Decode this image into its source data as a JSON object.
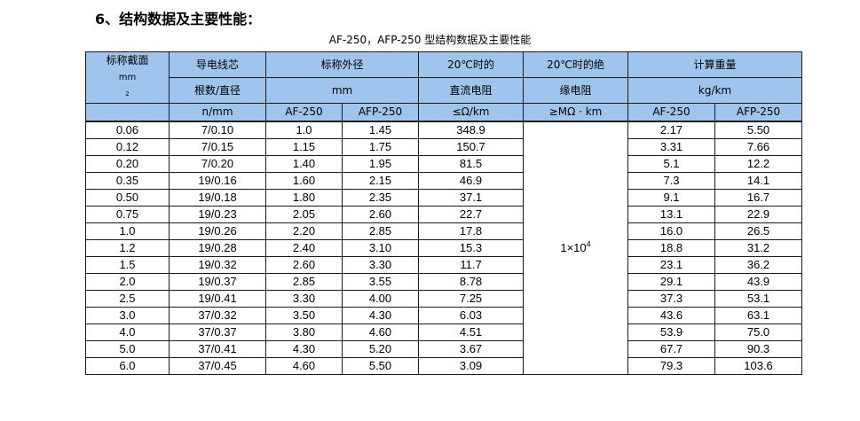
{
  "heading": "6、结构数据及主要性能：",
  "caption": "AF-250，AFP-250 型结构数据及主要性能",
  "headers": {
    "cross_section": "标称截面",
    "cross_section_unit": "mm",
    "cross_section_sup": "2",
    "conductor_line1": "导电线芯",
    "conductor_line2": "根数/直径",
    "conductor_unit": "n/mm",
    "od_title": "标称外径",
    "od_unit": "mm",
    "od_af": "AF-250",
    "od_afp": "AFP-250",
    "dcr_line1": "20℃时的",
    "dcr_line2": "直流电阻",
    "dcr_unit": "≤Ω/km",
    "ins_line1": "20℃时的绝",
    "ins_line2": "缘电阻",
    "ins_unit": "≥MΩ · km",
    "wt_title": "计算重量",
    "wt_unit": "kg/km",
    "wt_af": "AF-250",
    "wt_afp": "AFP-250"
  },
  "insulation_value": "1×10",
  "insulation_exp": "4",
  "rows": [
    [
      "0.06",
      "7/0.10",
      "1.0",
      "1.45",
      "348.9",
      "2.17",
      "5.50"
    ],
    [
      "0.12",
      "7/0.15",
      "1.15",
      "1.75",
      "150.7",
      "3.31",
      "7.66"
    ],
    [
      "0.20",
      "7/0.20",
      "1.40",
      "1.95",
      "81.5",
      "5.1",
      "12.2"
    ],
    [
      "0.35",
      "19/0.16",
      "1.60",
      "2.15",
      "46.9",
      "7.3",
      "14.1"
    ],
    [
      "0.50",
      "19/0.18",
      "1.80",
      "2.35",
      "37.1",
      "9.1",
      "16.7"
    ],
    [
      "0.75",
      "19/0.23",
      "2.05",
      "2.60",
      "22.7",
      "13.1",
      "22.9"
    ],
    [
      "1.0",
      "19/0.26",
      "2.20",
      "2.85",
      "17.8",
      "16.0",
      "26.5"
    ],
    [
      "1.2",
      "19/0.28",
      "2.40",
      "3.10",
      "15.3",
      "18.8",
      "31.2"
    ],
    [
      "1.5",
      "19/0.32",
      "2.60",
      "3.30",
      "11.7",
      "23.1",
      "36.2"
    ],
    [
      "2.0",
      "19/0.37",
      "2.85",
      "3.55",
      "8.78",
      "29.1",
      "43.9"
    ],
    [
      "2.5",
      "19/0.41",
      "3.30",
      "4.00",
      "7.25",
      "37.3",
      "53.1"
    ],
    [
      "3.0",
      "37/0.32",
      "3.50",
      "4.30",
      "6.03",
      "43.6",
      "63.1"
    ],
    [
      "4.0",
      "37/0.37",
      "3.80",
      "4.60",
      "4.51",
      "53.9",
      "75.0"
    ],
    [
      "5.0",
      "37/0.41",
      "4.30",
      "5.20",
      "3.67",
      "67.7",
      "90.3"
    ],
    [
      "6.0",
      "37/0.45",
      "4.60",
      "5.50",
      "3.09",
      "79.3",
      "103.6"
    ]
  ]
}
